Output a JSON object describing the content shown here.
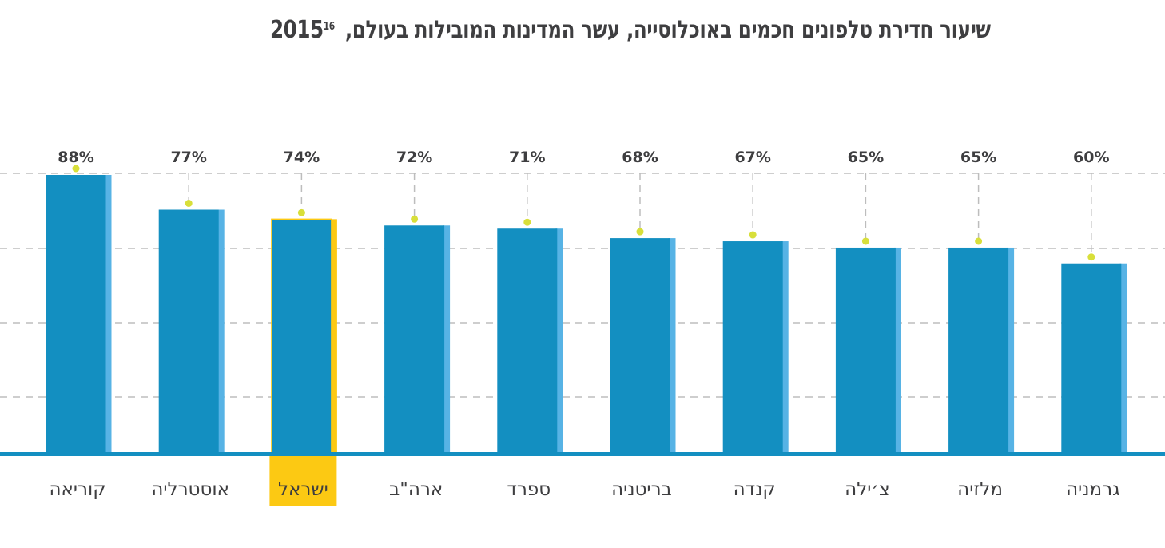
{
  "title": {
    "text": "שיעור חדירת טלפונים חכמים באוכלוסייה, עשר המדינות המובילות בעולם, 2015",
    "footnote": "16"
  },
  "colors": {
    "bar_face": "#138fc1",
    "bar_side": "#57b3e5",
    "highlight": "#fcc913",
    "dot": "#d8df3a",
    "grid": "#bdbdbd",
    "baseline": "#138fc1",
    "text": "#3e3e40"
  },
  "chart_data": {
    "type": "bar",
    "title": "שיעור חדירת טלפונים חכמים באוכלוסייה, עשר המדינות המובילות בעולם, 2015",
    "xlabel": "",
    "ylabel": "",
    "categories": [
      "קוריאה",
      "אוסטרליה",
      "ישראל",
      "ארה\"ב",
      "ספרד",
      "בריטניה",
      "קנדה",
      "צ׳ילה",
      "מלזיה",
      "גרמניה"
    ],
    "values": [
      88,
      77,
      74,
      72,
      71,
      68,
      67,
      65,
      65,
      60
    ],
    "value_labels": [
      "88%",
      "77%",
      "74%",
      "72%",
      "71%",
      "68%",
      "67%",
      "65%",
      "65%",
      "60%"
    ],
    "highlighted_category": "ישראל",
    "ylim": [
      0,
      88
    ],
    "y_ticks_shown": false,
    "grid": true,
    "legend": "none"
  }
}
